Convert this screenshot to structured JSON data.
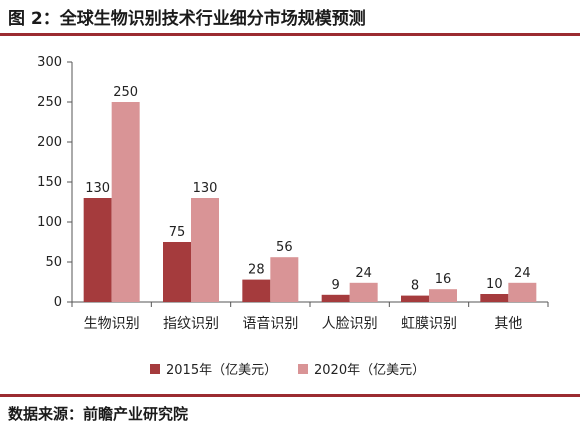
{
  "title": "图 2：全球生物识别技术行业细分市场规模预测",
  "source": "数据来源：前瞻产业研究院",
  "colors": {
    "rule": "#9b2b31",
    "series_2015": "#a53b3d",
    "series_2020": "#d99496",
    "axis": "#555555"
  },
  "chart_data": {
    "type": "bar",
    "categories": [
      "生物识别",
      "指纹识别",
      "语音识别",
      "人脸识别",
      "虹膜识别",
      "其他"
    ],
    "series": [
      {
        "name": "2015年（亿美元）",
        "values": [
          130,
          75,
          28,
          9,
          8,
          10
        ]
      },
      {
        "name": "2020年（亿美元）",
        "values": [
          250,
          130,
          56,
          24,
          16,
          24
        ]
      }
    ],
    "yticks": [
      0,
      50,
      100,
      150,
      200,
      250,
      300
    ],
    "ylim": [
      0,
      300
    ],
    "legend": "bottom",
    "grid": false
  }
}
